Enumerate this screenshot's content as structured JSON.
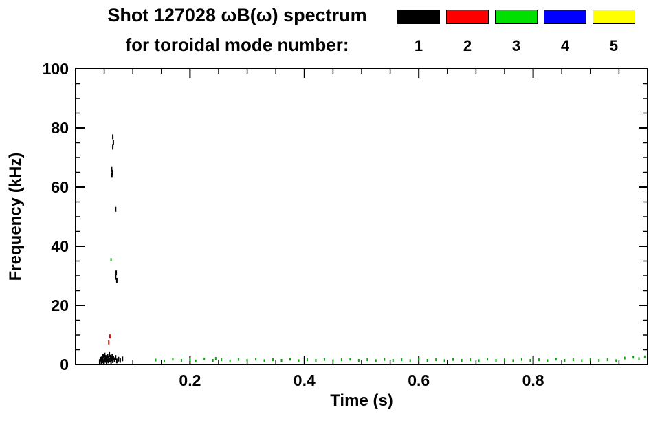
{
  "title": {
    "line1": "Shot 127028 ωB(ω) spectrum",
    "line2": "for toroidal mode number:"
  },
  "legend": {
    "entries": [
      {
        "label": "1",
        "color": "#000000"
      },
      {
        "label": "2",
        "color": "#ff0000"
      },
      {
        "label": "3",
        "color": "#00e000"
      },
      {
        "label": "4",
        "color": "#0000ff"
      },
      {
        "label": "5",
        "color": "#ffff00"
      }
    ]
  },
  "chart_data": {
    "type": "scatter",
    "title": "Shot 127028 ωB(ω) spectrum for toroidal mode number: 1-5",
    "xlabel": "Time (s)",
    "ylabel": "Frequency (kHz)",
    "xlim": [
      0.0,
      1.0
    ],
    "ylim": [
      0,
      100
    ],
    "x_ticks": [
      0.2,
      0.4,
      0.6,
      0.8
    ],
    "y_ticks": [
      0,
      20,
      40,
      60,
      80,
      100
    ],
    "grid": false,
    "legend_position": "top-right",
    "series": [
      {
        "name": "n=1",
        "color": "#000000",
        "mark_h": 7,
        "points": [
          [
            0.042,
            1.0
          ],
          [
            0.044,
            1.8
          ],
          [
            0.045,
            0.8
          ],
          [
            0.046,
            2.2
          ],
          [
            0.047,
            1.3
          ],
          [
            0.048,
            2.8
          ],
          [
            0.049,
            1.0
          ],
          [
            0.05,
            1.9
          ],
          [
            0.051,
            3.2
          ],
          [
            0.052,
            1.4
          ],
          [
            0.053,
            2.4
          ],
          [
            0.054,
            0.9
          ],
          [
            0.055,
            1.7
          ],
          [
            0.056,
            2.9
          ],
          [
            0.057,
            1.2
          ],
          [
            0.058,
            2.1
          ],
          [
            0.059,
            3.4
          ],
          [
            0.06,
            1.5
          ],
          [
            0.061,
            2.5
          ],
          [
            0.062,
            1.0
          ],
          [
            0.063,
            1.9
          ],
          [
            0.064,
            2.8
          ],
          [
            0.065,
            1.3
          ],
          [
            0.066,
            2.2
          ],
          [
            0.068,
            1.6
          ],
          [
            0.07,
            2.4
          ],
          [
            0.072,
            1.2
          ],
          [
            0.075,
            1.8
          ],
          [
            0.078,
            1.4
          ],
          [
            0.082,
            1.9
          ],
          [
            0.065,
            77.0
          ],
          [
            0.066,
            75.0
          ],
          [
            0.065,
            73.5
          ],
          [
            0.063,
            66.0
          ],
          [
            0.064,
            65.0
          ],
          [
            0.0635,
            64.0
          ],
          [
            0.07,
            52.5
          ],
          [
            0.071,
            31.0
          ],
          [
            0.07,
            29.5
          ],
          [
            0.072,
            28.5
          ]
        ]
      },
      {
        "name": "n=2",
        "color": "#dd0000",
        "mark_h": 6,
        "points": [
          [
            0.058,
            7.5
          ],
          [
            0.06,
            9.5
          ]
        ]
      },
      {
        "name": "n=3",
        "color": "#00a800",
        "mark_h": 4,
        "points": [
          [
            0.062,
            35.5
          ],
          [
            0.14,
            1.5
          ],
          [
            0.155,
            1.2
          ],
          [
            0.17,
            1.8
          ],
          [
            0.185,
            1.4
          ],
          [
            0.2,
            1.6
          ],
          [
            0.21,
            1.2
          ],
          [
            0.225,
            1.9
          ],
          [
            0.24,
            1.4
          ],
          [
            0.245,
            2.1
          ],
          [
            0.255,
            1.6
          ],
          [
            0.27,
            1.2
          ],
          [
            0.285,
            1.7
          ],
          [
            0.3,
            1.4
          ],
          [
            0.315,
            1.8
          ],
          [
            0.33,
            1.3
          ],
          [
            0.345,
            1.6
          ],
          [
            0.36,
            1.4
          ],
          [
            0.375,
            1.8
          ],
          [
            0.39,
            1.3
          ],
          [
            0.405,
            1.6
          ],
          [
            0.42,
            1.4
          ],
          [
            0.435,
            1.7
          ],
          [
            0.45,
            1.3
          ],
          [
            0.465,
            1.6
          ],
          [
            0.48,
            1.8
          ],
          [
            0.495,
            1.4
          ],
          [
            0.51,
            1.6
          ],
          [
            0.525,
            1.3
          ],
          [
            0.54,
            1.7
          ],
          [
            0.555,
            1.4
          ],
          [
            0.57,
            1.6
          ],
          [
            0.585,
            1.3
          ],
          [
            0.6,
            1.8
          ],
          [
            0.615,
            1.4
          ],
          [
            0.63,
            1.6
          ],
          [
            0.645,
            1.3
          ],
          [
            0.66,
            1.7
          ],
          [
            0.675,
            1.4
          ],
          [
            0.69,
            1.6
          ],
          [
            0.705,
            1.3
          ],
          [
            0.72,
            1.8
          ],
          [
            0.735,
            1.4
          ],
          [
            0.75,
            1.6
          ],
          [
            0.765,
            1.3
          ],
          [
            0.78,
            1.7
          ],
          [
            0.795,
            1.4
          ],
          [
            0.81,
            1.6
          ],
          [
            0.825,
            1.3
          ],
          [
            0.84,
            1.8
          ],
          [
            0.855,
            1.4
          ],
          [
            0.87,
            1.6
          ],
          [
            0.885,
            1.3
          ],
          [
            0.9,
            1.7
          ],
          [
            0.915,
            1.4
          ],
          [
            0.93,
            1.6
          ],
          [
            0.945,
            1.3
          ],
          [
            0.96,
            2.2
          ],
          [
            0.975,
            2.5
          ],
          [
            0.985,
            2.0
          ],
          [
            0.995,
            2.6
          ]
        ]
      },
      {
        "name": "n=4",
        "color": "#0000ee",
        "mark_h": 6,
        "points": []
      },
      {
        "name": "n=5",
        "color": "#f0f000",
        "mark_h": 6,
        "points": []
      }
    ]
  }
}
